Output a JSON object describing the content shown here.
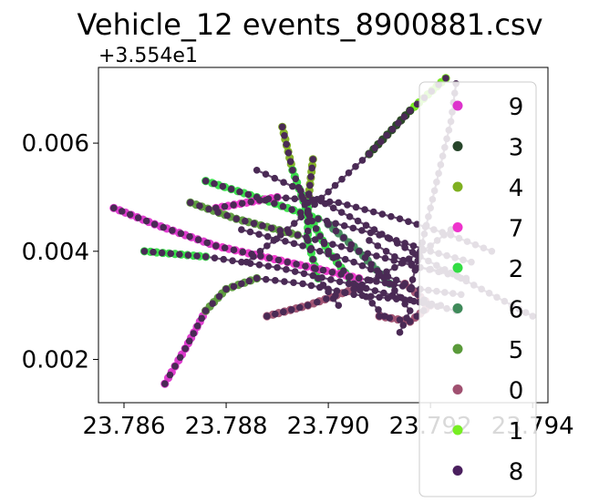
{
  "chart_data": {
    "type": "scatter",
    "title": "Vehicle_12 events_8900881.csv",
    "x_offset_label": "",
    "y_offset_label": "+3.554e1",
    "xlabel": "",
    "ylabel": "",
    "xlim": [
      23.7855,
      23.7943
    ],
    "ylim": [
      0.0012,
      0.0074
    ],
    "x_ticks": [
      {
        "value": 23.786,
        "label": "23.786"
      },
      {
        "value": 23.788,
        "label": "23.788"
      },
      {
        "value": 23.79,
        "label": "23.790"
      },
      {
        "value": 23.792,
        "label": "23.792"
      },
      {
        "value": 23.794,
        "label": "23.794"
      }
    ],
    "y_ticks": [
      {
        "value": 0.002,
        "label": "0.002"
      },
      {
        "value": 0.004,
        "label": "0.004"
      },
      {
        "value": 0.006,
        "label": "0.006"
      }
    ],
    "legend_position": "right",
    "grid": false,
    "track_color": "#4a2a55",
    "series": [
      {
        "name": "9",
        "color": "#dd33cc"
      },
      {
        "name": "3",
        "color": "#27452a"
      },
      {
        "name": "4",
        "color": "#7fb020"
      },
      {
        "name": "7",
        "color": "#ee33cc"
      },
      {
        "name": "2",
        "color": "#33dd44"
      },
      {
        "name": "6",
        "color": "#3f8a5a"
      },
      {
        "name": "5",
        "color": "#5a9a3a"
      },
      {
        "name": "0",
        "color": "#a05070"
      },
      {
        "name": "1",
        "color": "#77ee22"
      },
      {
        "name": "8",
        "color": "#4a1f5e"
      }
    ],
    "paths": [
      [
        [
          23.7868,
          0.00155
        ],
        [
          23.7872,
          0.0022
        ],
        [
          23.7876,
          0.0029
        ],
        [
          23.788,
          0.0033
        ],
        [
          23.7886,
          0.0035
        ],
        [
          23.7895,
          0.0034
        ],
        [
          23.7905,
          0.0032
        ],
        [
          23.7915,
          0.0031
        ],
        [
          23.7922,
          0.003
        ]
      ],
      [
        [
          23.7858,
          0.0048
        ],
        [
          23.7866,
          0.0045
        ],
        [
          23.7878,
          0.0041
        ],
        [
          23.7892,
          0.0038
        ],
        [
          23.7906,
          0.0035
        ],
        [
          23.7918,
          0.0033
        ],
        [
          23.7926,
          0.0032
        ]
      ],
      [
        [
          23.7864,
          0.004
        ],
        [
          23.7876,
          0.0039
        ],
        [
          23.789,
          0.0037
        ],
        [
          23.7904,
          0.0034
        ],
        [
          23.7916,
          0.0031
        ],
        [
          23.7925,
          0.0029
        ]
      ],
      [
        [
          23.7873,
          0.0049
        ],
        [
          23.7882,
          0.0046
        ],
        [
          23.7894,
          0.0043
        ],
        [
          23.7906,
          0.004
        ],
        [
          23.7918,
          0.0037
        ],
        [
          23.7927,
          0.0035
        ]
      ],
      [
        [
          23.7876,
          0.0053
        ],
        [
          23.7886,
          0.005
        ],
        [
          23.7898,
          0.0046
        ],
        [
          23.791,
          0.0043
        ],
        [
          23.792,
          0.004
        ],
        [
          23.7928,
          0.0038
        ]
      ],
      [
        [
          23.7886,
          0.0055
        ],
        [
          23.7893,
          0.0052
        ],
        [
          23.7901,
          0.0048
        ],
        [
          23.7909,
          0.0044
        ],
        [
          23.7918,
          0.0039
        ],
        [
          23.7926,
          0.0035
        ]
      ],
      [
        [
          23.7891,
          0.0063
        ],
        [
          23.7893,
          0.0055
        ],
        [
          23.7896,
          0.0047
        ],
        [
          23.79,
          0.004
        ],
        [
          23.7905,
          0.0034
        ],
        [
          23.7911,
          0.0028
        ]
      ],
      [
        [
          23.7897,
          0.0057
        ],
        [
          23.7896,
          0.0049
        ],
        [
          23.7896,
          0.0042
        ],
        [
          23.7898,
          0.0035
        ],
        [
          23.7902,
          0.003
        ]
      ],
      [
        [
          23.7923,
          0.0072
        ],
        [
          23.7916,
          0.0066
        ],
        [
          23.7908,
          0.0058
        ],
        [
          23.79,
          0.0051
        ],
        [
          23.7892,
          0.0044
        ],
        [
          23.7884,
          0.0038
        ]
      ],
      [
        [
          23.7925,
          0.0071
        ],
        [
          23.7924,
          0.0064
        ],
        [
          23.7922,
          0.0056
        ],
        [
          23.792,
          0.0048
        ],
        [
          23.7918,
          0.004
        ],
        [
          23.7916,
          0.0033
        ]
      ],
      [
        [
          23.7888,
          0.0028
        ],
        [
          23.7896,
          0.003
        ],
        [
          23.7905,
          0.0033
        ],
        [
          23.7913,
          0.0037
        ],
        [
          23.792,
          0.0041
        ],
        [
          23.7924,
          0.0044
        ]
      ],
      [
        [
          23.79,
          0.0045
        ],
        [
          23.7906,
          0.004
        ],
        [
          23.7912,
          0.0034
        ],
        [
          23.7916,
          0.0029
        ],
        [
          23.7914,
          0.0025
        ]
      ],
      [
        [
          23.7908,
          0.0042
        ],
        [
          23.7913,
          0.0039
        ],
        [
          23.7918,
          0.0037
        ],
        [
          23.7924,
          0.0036
        ],
        [
          23.793,
          0.0033
        ],
        [
          23.7936,
          0.003
        ],
        [
          23.794,
          0.0028
        ]
      ],
      [
        [
          23.7878,
          0.0048
        ],
        [
          23.789,
          0.005
        ],
        [
          23.7902,
          0.0049
        ],
        [
          23.7914,
          0.0046
        ],
        [
          23.7924,
          0.0043
        ],
        [
          23.7932,
          0.004
        ]
      ],
      [
        [
          23.7883,
          0.0044
        ],
        [
          23.7895,
          0.0041
        ],
        [
          23.7905,
          0.0038
        ],
        [
          23.7915,
          0.0034
        ],
        [
          23.792,
          0.003
        ],
        [
          23.7916,
          0.0027
        ],
        [
          23.791,
          0.0028
        ]
      ]
    ],
    "highlights": [
      {
        "series": "9",
        "path": 0,
        "from": 0,
        "to": 2
      },
      {
        "series": "9",
        "path": 1,
        "from": 0,
        "to": 2
      },
      {
        "series": "4",
        "path": 8,
        "from": 0,
        "to": 2
      },
      {
        "series": "4",
        "path": 6,
        "from": 0,
        "to": 1
      },
      {
        "series": "4",
        "path": 7,
        "from": 0,
        "to": 1
      },
      {
        "series": "2",
        "path": 6,
        "from": 1,
        "to": 4
      },
      {
        "series": "2",
        "path": 7,
        "from": 1,
        "to": 3
      },
      {
        "series": "2",
        "path": 4,
        "from": 0,
        "to": 2
      },
      {
        "series": "2",
        "path": 2,
        "from": 0,
        "to": 1
      },
      {
        "series": "7",
        "path": 1,
        "from": 2,
        "to": 4
      },
      {
        "series": "7",
        "path": 13,
        "from": 0,
        "to": 1
      },
      {
        "series": "5",
        "path": 0,
        "from": 2,
        "to": 4
      },
      {
        "series": "5",
        "path": 3,
        "from": 0,
        "to": 2
      },
      {
        "series": "0",
        "path": 10,
        "from": 0,
        "to": 2
      },
      {
        "series": "0",
        "path": 14,
        "from": 3,
        "to": 6
      },
      {
        "series": "1",
        "path": 8,
        "from": 0,
        "to": 1
      },
      {
        "series": "6",
        "path": 11,
        "from": 0,
        "to": 2
      },
      {
        "series": "3",
        "path": 8,
        "from": 1,
        "to": 2
      }
    ]
  }
}
